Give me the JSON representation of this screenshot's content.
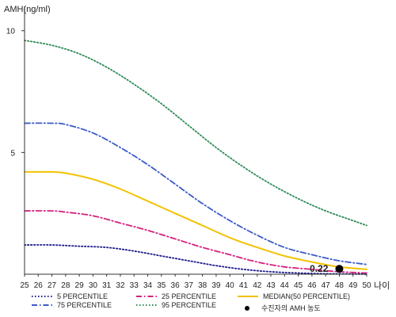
{
  "chart_data": {
    "type": "line",
    "ylabel": "AMH(ng/ml)",
    "xlabel": "나이",
    "xlim": [
      25,
      50
    ],
    "ylim": [
      0,
      11
    ],
    "x_ticks": [
      "25",
      "26",
      "27",
      "28",
      "29",
      "30",
      "31",
      "32",
      "33",
      "34",
      "35",
      "36",
      "37",
      "38",
      "39",
      "40",
      "41",
      "42",
      "43",
      "44",
      "45",
      "46",
      "47",
      "48",
      "49",
      "50"
    ],
    "y_ticks": [
      "5",
      "10"
    ],
    "y_tick_values": [
      5,
      10
    ],
    "grid": false,
    "legend_position": "bottom",
    "series": [
      {
        "name": "95 PERCENTILE",
        "color": "#2e8b57",
        "dash": "dotted",
        "x": [
          25,
          27,
          29,
          31,
          33,
          35,
          37,
          39,
          41,
          43,
          45,
          47,
          49,
          50
        ],
        "values": [
          9.6,
          9.4,
          9.05,
          8.5,
          7.8,
          7.0,
          6.1,
          5.2,
          4.4,
          3.7,
          3.1,
          2.6,
          2.2,
          2.0
        ]
      },
      {
        "name": "75 PERCENTILE",
        "color": "#3a5bc7",
        "dash": "dashdot",
        "x": [
          25,
          27,
          28,
          30,
          32,
          34,
          36,
          38,
          40,
          42,
          44,
          46,
          48,
          50
        ],
        "values": [
          6.2,
          6.2,
          6.15,
          5.8,
          5.2,
          4.5,
          3.7,
          2.9,
          2.2,
          1.6,
          1.1,
          0.8,
          0.55,
          0.4
        ]
      },
      {
        "name": "MEDIAN(50 PERCENTILE)",
        "color": "#f2c200",
        "dash": "solid",
        "x": [
          25,
          27,
          28,
          30,
          32,
          34,
          36,
          38,
          40,
          42,
          44,
          46,
          48,
          50
        ],
        "values": [
          4.2,
          4.2,
          4.15,
          3.9,
          3.5,
          3.0,
          2.5,
          2.0,
          1.5,
          1.1,
          0.75,
          0.5,
          0.3,
          0.2
        ]
      },
      {
        "name": "25 PERCENTILE",
        "color": "#d6227f",
        "dash": "dashdot",
        "x": [
          25,
          27,
          28,
          30,
          32,
          34,
          36,
          38,
          40,
          42,
          44,
          46,
          48,
          50
        ],
        "values": [
          2.6,
          2.6,
          2.55,
          2.4,
          2.1,
          1.8,
          1.45,
          1.1,
          0.8,
          0.5,
          0.3,
          0.2,
          0.1,
          0.05
        ]
      },
      {
        "name": "5 PERCENTILE",
        "color": "#1a1a8c",
        "dash": "dotted",
        "x": [
          25,
          27,
          29,
          31,
          33,
          35,
          37,
          39,
          41,
          43,
          45,
          47,
          49,
          50
        ],
        "values": [
          1.2,
          1.2,
          1.15,
          1.1,
          0.95,
          0.75,
          0.55,
          0.35,
          0.2,
          0.1,
          0.05,
          0.02,
          0.01,
          0.0
        ]
      }
    ],
    "legend": [
      {
        "label": "5 PERCENTILE",
        "color": "#1a1a8c",
        "dash": "dotted"
      },
      {
        "label": "25 PERCENTILE",
        "color": "#d6227f",
        "dash": "dashdot"
      },
      {
        "label": "MEDIAN(50 PERCENTILE)",
        "color": "#f2c200",
        "dash": "solid"
      },
      {
        "label": "75 PERCENTILE",
        "color": "#3a5bc7",
        "dash": "dashdot"
      },
      {
        "label": "95 PERCENTILE",
        "color": "#2e8b57",
        "dash": "dotted"
      },
      {
        "label": "수진자의 AMH 농도",
        "color": "#000000",
        "dash": "marker"
      }
    ],
    "annotations": [
      {
        "x": 48,
        "y": 0.22,
        "label": "0.22",
        "marker": "dot",
        "color": "#000000"
      }
    ]
  }
}
